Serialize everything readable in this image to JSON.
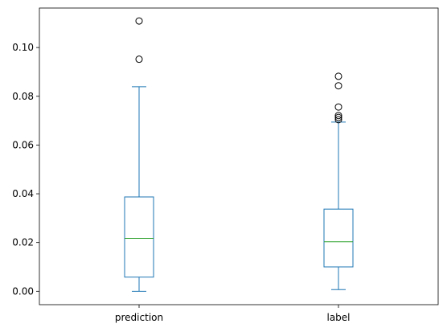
{
  "chart_data": {
    "type": "box",
    "title": "",
    "xlabel": "",
    "ylabel": "",
    "categories": [
      "prediction",
      "label"
    ],
    "ylim": [
      -0.0055,
      0.1162
    ],
    "yticks": [
      0.0,
      0.02,
      0.04,
      0.06,
      0.08,
      0.1
    ],
    "ytick_labels": [
      "0.00",
      "0.02",
      "0.04",
      "0.06",
      "0.08",
      "0.10"
    ],
    "grid": false,
    "boxes": [
      {
        "name": "prediction",
        "whisker_low": 0.0,
        "q1": 0.0058,
        "median": 0.0217,
        "q3": 0.0387,
        "whisker_high": 0.0839,
        "outliers": [
          0.0952,
          0.1109
        ]
      },
      {
        "name": "label",
        "whisker_low": 0.0007,
        "q1": 0.01,
        "median": 0.0203,
        "q3": 0.0337,
        "whisker_high": 0.0694,
        "outliers": [
          0.0704,
          0.0713,
          0.0721,
          0.0756,
          0.0843,
          0.0882
        ]
      }
    ],
    "colors": {
      "box": "#1f77b4",
      "median": "#2ca02c",
      "outlier": "#000000",
      "axes": "#000000"
    }
  }
}
